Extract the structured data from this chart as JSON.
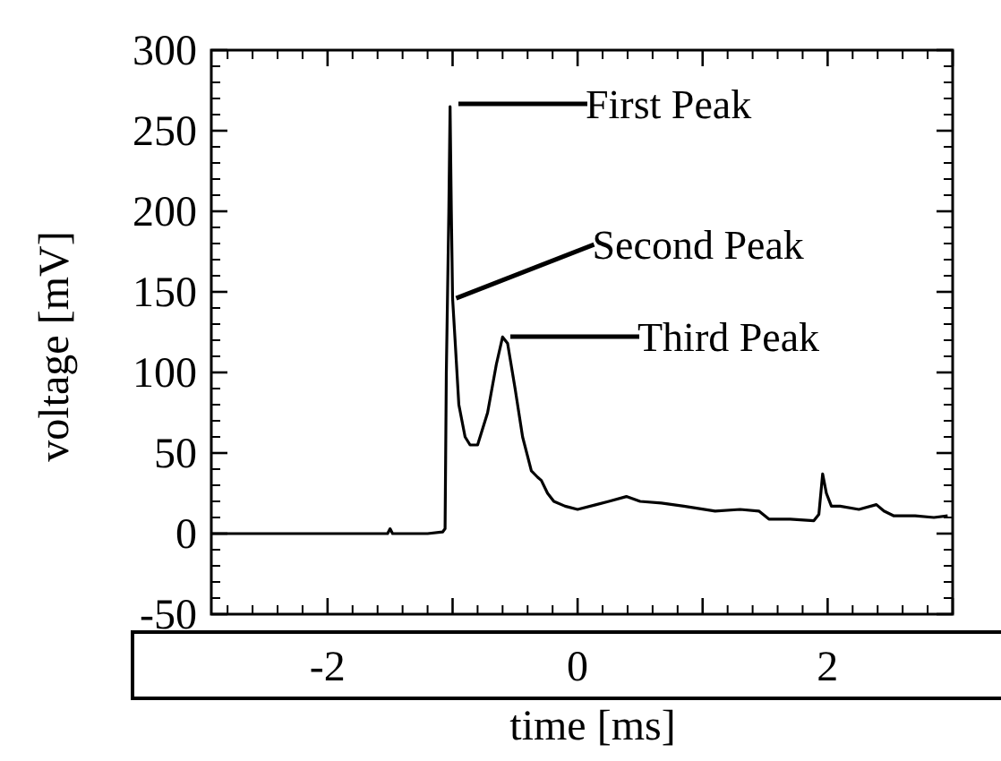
{
  "chart_data": {
    "type": "line",
    "xlabel": "time [ms]",
    "ylabel": "voltage [mV]",
    "x": [
      -2.93,
      -2.0,
      -1.6,
      -1.52,
      -1.5,
      -1.48,
      -1.2,
      -1.08,
      -1.06,
      -1.05,
      -1.03,
      -1.02,
      -1.01,
      -1.0,
      -0.98,
      -0.95,
      -0.9,
      -0.86,
      -0.8,
      -0.72,
      -0.65,
      -0.6,
      -0.56,
      -0.5,
      -0.44,
      -0.37,
      -0.32,
      -0.29,
      -0.24,
      -0.19,
      -0.1,
      0.0,
      0.15,
      0.25,
      0.39,
      0.5,
      0.67,
      0.85,
      1.1,
      1.3,
      1.45,
      1.53,
      1.7,
      1.89,
      1.93,
      1.96,
      1.99,
      2.03,
      2.1,
      2.25,
      2.39,
      2.45,
      2.53,
      2.7,
      2.85,
      2.96
    ],
    "values": [
      0,
      0,
      0,
      0,
      3,
      0,
      0,
      1,
      3,
      100,
      200,
      265,
      200,
      146,
      120,
      80,
      60,
      55,
      55,
      75,
      105,
      122,
      118,
      90,
      60,
      39,
      35,
      33,
      25,
      20,
      17,
      15,
      18,
      20,
      23,
      20,
      19,
      17,
      14,
      15,
      14,
      9,
      9,
      8,
      12,
      37,
      25,
      17,
      17,
      15,
      18,
      14,
      11,
      11,
      10,
      11
    ],
    "color": "#000000",
    "xlim": [
      -2.93,
      3.0
    ],
    "ylim": [
      -50,
      300
    ],
    "xticks": [
      {
        "value": -2,
        "label": "-2"
      },
      {
        "value": -1,
        "label": null
      },
      {
        "value": 0,
        "label": "0"
      },
      {
        "value": 1,
        "label": null
      },
      {
        "value": 2,
        "label": "2"
      },
      {
        "value": 3,
        "label": null
      }
    ],
    "yticks": [
      -50,
      0,
      50,
      100,
      150,
      200,
      250,
      300
    ],
    "marker": "none",
    "line_style": "solid",
    "grid": false,
    "annotations": [
      "First Peak",
      {
        "text": "Second Peak",
        "x": -1.0,
        "y": 146
      },
      "Third Peak"
    ]
  }
}
